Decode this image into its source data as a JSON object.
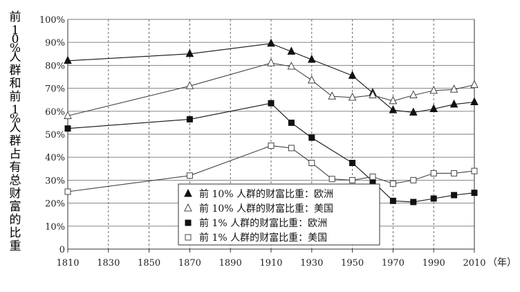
{
  "chart_data": {
    "type": "line",
    "ylabel": "前10%人群和前1%人群占有总财富的比重",
    "xunit": "（年）",
    "xlim": [
      1810,
      2010
    ],
    "ylim": [
      0,
      100
    ],
    "x_ticks": [
      "1810",
      "1830",
      "1850",
      "1870",
      "1890",
      "1910",
      "1930",
      "1950",
      "1970",
      "1990",
      "2010"
    ],
    "y_ticks": [
      "0",
      "10%",
      "20%",
      "30%",
      "40%",
      "50%",
      "60%",
      "70%",
      "80%",
      "90%",
      "100%"
    ],
    "grid": "vertical dashed at each x tick; horizontal solid at each 10% y tick",
    "legend_position": "lower-middle",
    "series": [
      {
        "name": "前 10% 人群的财富比重：欧洲",
        "marker": "filled-triangle",
        "color": "#111111",
        "points": [
          [
            1810,
            82
          ],
          [
            1870,
            85
          ],
          [
            1910,
            89.5
          ],
          [
            1920,
            86
          ],
          [
            1930,
            82.5
          ],
          [
            1950,
            75.5
          ],
          [
            1960,
            68
          ],
          [
            1970,
            60.5
          ],
          [
            1980,
            59.5
          ],
          [
            1990,
            61
          ],
          [
            2000,
            63
          ],
          [
            2010,
            64
          ]
        ]
      },
      {
        "name": "前 10% 人群的财富比重：美国",
        "marker": "open-triangle",
        "color": "#444444",
        "points": [
          [
            1810,
            58
          ],
          [
            1870,
            71
          ],
          [
            1910,
            81
          ],
          [
            1920,
            79.5
          ],
          [
            1930,
            73.5
          ],
          [
            1940,
            66.5
          ],
          [
            1950,
            66
          ],
          [
            1960,
            67
          ],
          [
            1970,
            64.5
          ],
          [
            1980,
            67
          ],
          [
            1990,
            69
          ],
          [
            2000,
            69.5
          ],
          [
            2010,
            71.5
          ]
        ]
      },
      {
        "name": "前 1% 人群的财富比重：欧洲",
        "marker": "filled-square",
        "color": "#111111",
        "points": [
          [
            1810,
            52.5
          ],
          [
            1870,
            56.5
          ],
          [
            1910,
            63.5
          ],
          [
            1920,
            55
          ],
          [
            1930,
            48.5
          ],
          [
            1950,
            37.5
          ],
          [
            1960,
            29.5
          ],
          [
            1970,
            21
          ],
          [
            1980,
            20.5
          ],
          [
            1990,
            22
          ],
          [
            2000,
            23.5
          ],
          [
            2010,
            24.5
          ]
        ]
      },
      {
        "name": "前 1% 人群的财富比重：美国",
        "marker": "open-square",
        "color": "#444444",
        "points": [
          [
            1810,
            25
          ],
          [
            1870,
            32
          ],
          [
            1910,
            45
          ],
          [
            1920,
            44
          ],
          [
            1930,
            37.5
          ],
          [
            1940,
            30.5
          ],
          [
            1950,
            30
          ],
          [
            1960,
            31.5
          ],
          [
            1970,
            28.5
          ],
          [
            1980,
            30
          ],
          [
            1990,
            33
          ],
          [
            2000,
            33
          ],
          [
            2010,
            34
          ]
        ]
      }
    ]
  }
}
